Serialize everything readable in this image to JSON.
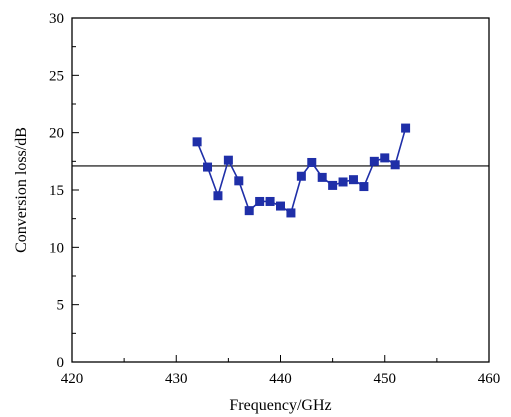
{
  "chart_data": {
    "type": "line",
    "xlabel": "Frequency/GHz",
    "ylabel": "Conversion loss/dB",
    "xlim": [
      420,
      460
    ],
    "ylim": [
      0,
      30
    ],
    "xticks": [
      420,
      430,
      440,
      450,
      460
    ],
    "yticks": [
      0,
      5,
      10,
      15,
      20,
      25,
      30
    ],
    "xtick_labels": [
      "420",
      "430",
      "440",
      "450",
      "460"
    ],
    "ytick_labels": [
      "0",
      "5",
      "10",
      "15",
      "20",
      "25",
      "30"
    ],
    "grid": false,
    "legend": "none",
    "reference_line_y": 17.1,
    "series_color": "#1f2fa8",
    "series": [
      {
        "marker": "square",
        "x": [
          432,
          433,
          434,
          435,
          436,
          437,
          438,
          439,
          440,
          441,
          442,
          443,
          444,
          445,
          446,
          447,
          448,
          449,
          450,
          451,
          452
        ],
        "y": [
          19.2,
          17.0,
          14.5,
          17.6,
          15.8,
          13.2,
          14.0,
          14.0,
          13.6,
          13.0,
          16.2,
          17.4,
          16.1,
          15.4,
          15.7,
          15.9,
          15.3,
          17.5,
          17.8,
          17.2,
          20.4
        ]
      }
    ]
  }
}
